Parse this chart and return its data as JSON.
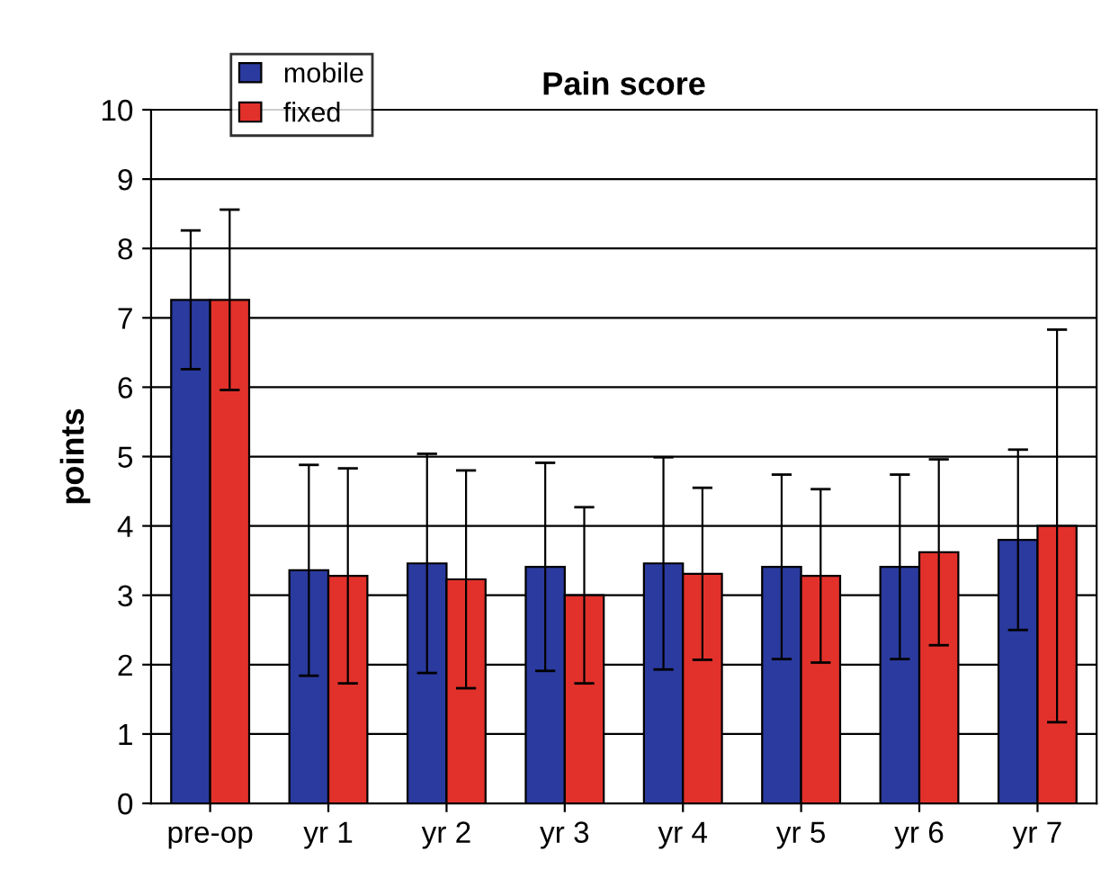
{
  "chart_data": {
    "type": "bar",
    "title": "Pain score",
    "ylabel": "points",
    "categories": [
      "pre-op",
      "yr 1",
      "yr 2",
      "yr 3",
      "yr 4",
      "yr 5",
      "yr 6",
      "yr 7"
    ],
    "series": [
      {
        "name": "mobile",
        "color": "#2b3a9e",
        "values": [
          7.26,
          3.36,
          3.46,
          3.41,
          3.46,
          3.41,
          3.41,
          3.8
        ],
        "errors": [
          1.0,
          1.52,
          1.58,
          1.5,
          1.53,
          1.33,
          1.33,
          1.3
        ]
      },
      {
        "name": "fixed",
        "color": "#e2312b",
        "values": [
          7.26,
          3.28,
          3.23,
          3.0,
          3.31,
          3.28,
          3.62,
          4.0
        ],
        "errors": [
          1.3,
          1.55,
          1.57,
          1.27,
          1.24,
          1.25,
          1.34,
          2.83
        ]
      }
    ],
    "ylim": [
      0,
      10
    ],
    "yticks": [
      0,
      1,
      2,
      3,
      4,
      5,
      6,
      7,
      8,
      9,
      10
    ],
    "grid": "y",
    "legend": "top left"
  }
}
